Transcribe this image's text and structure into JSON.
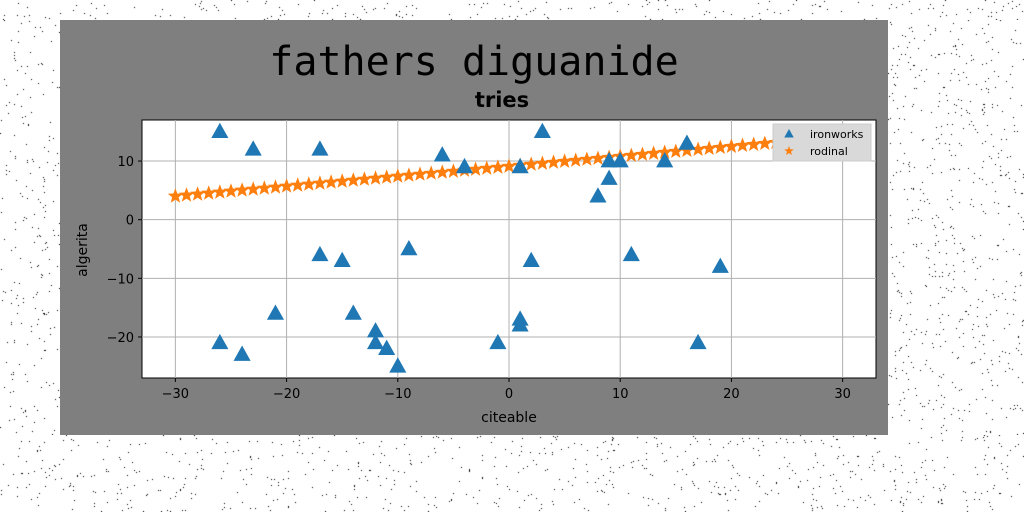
{
  "chart_data": {
    "type": "scatter",
    "title": "fathers diguanide",
    "subtitle": "tries",
    "xlabel": "citeable",
    "ylabel": "algerita",
    "xlim": [
      -33,
      33
    ],
    "ylim": [
      -27,
      17
    ],
    "xticks": [
      -30,
      -20,
      -10,
      0,
      10,
      20,
      30
    ],
    "xtick_labels": [
      "−30",
      "−20",
      "−10",
      "0",
      "10",
      "20",
      "30"
    ],
    "yticks": [
      -20,
      -10,
      0,
      10
    ],
    "ytick_labels": [
      "−20",
      "−10",
      "0",
      "10"
    ],
    "grid": true,
    "legend_position": "top-right",
    "series": [
      {
        "name": "ironworks",
        "marker": "triangle",
        "color": "#1f77b4",
        "points": [
          [
            -26,
            15
          ],
          [
            -23,
            12
          ],
          [
            -17,
            12
          ],
          [
            -6,
            11
          ],
          [
            -4,
            9
          ],
          [
            3,
            15
          ],
          [
            1,
            9
          ],
          [
            9,
            10
          ],
          [
            10,
            10
          ],
          [
            9,
            7
          ],
          [
            8,
            4
          ],
          [
            14,
            10
          ],
          [
            16,
            13
          ],
          [
            -17,
            -6
          ],
          [
            -15,
            -7
          ],
          [
            -9,
            -5
          ],
          [
            2,
            -7
          ],
          [
            11,
            -6
          ],
          [
            19,
            -8
          ],
          [
            -26,
            -21
          ],
          [
            -24,
            -23
          ],
          [
            -21,
            -16
          ],
          [
            -14,
            -16
          ],
          [
            -12,
            -19
          ],
          [
            -12,
            -21
          ],
          [
            -11,
            -22
          ],
          [
            -10,
            -25
          ],
          [
            -1,
            -21
          ],
          [
            1,
            -17
          ],
          [
            1,
            -18
          ],
          [
            17,
            -21
          ]
        ]
      },
      {
        "name": "rodinal",
        "marker": "star",
        "color": "#ff7f0e",
        "x_start": -30,
        "x_end": 29,
        "x_step": 1,
        "y_start": 4,
        "y_end": 14
      }
    ]
  }
}
